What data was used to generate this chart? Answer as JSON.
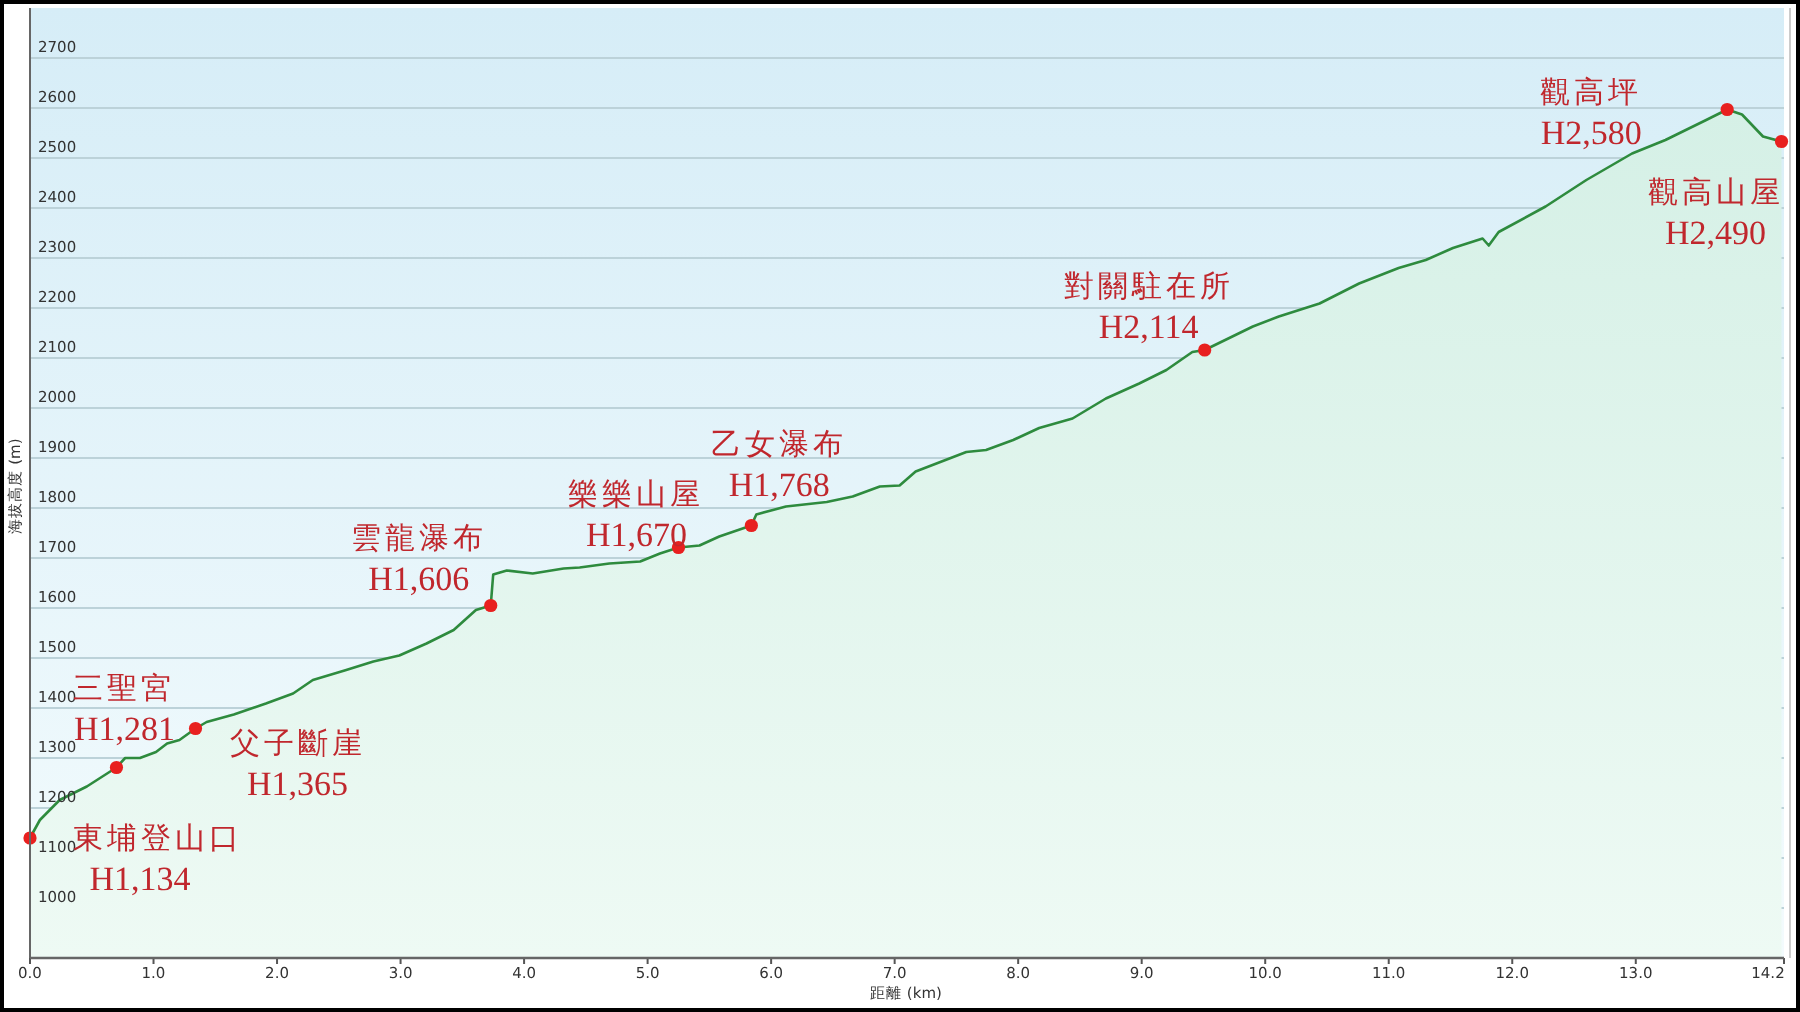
{
  "chart_data": {
    "type": "area",
    "xlabel": "距離 (km)",
    "ylabel": "海拔高度 (m)",
    "xlim": [
      0,
      14.2
    ],
    "ylim": [
      900,
      2800
    ],
    "xticks": [
      {
        "value": 0,
        "label": "0.0"
      },
      {
        "value": 1,
        "label": "1.0"
      },
      {
        "value": 2,
        "label": "2.0"
      },
      {
        "value": 3,
        "label": "3.0"
      },
      {
        "value": 4,
        "label": "4.0"
      },
      {
        "value": 5,
        "label": "5.0"
      },
      {
        "value": 6,
        "label": "6.0"
      },
      {
        "value": 7,
        "label": "7.0"
      },
      {
        "value": 8,
        "label": "8.0"
      },
      {
        "value": 9,
        "label": "9.0"
      },
      {
        "value": 10,
        "label": "10.0"
      },
      {
        "value": 11,
        "label": "11.0"
      },
      {
        "value": 12,
        "label": "12.0"
      },
      {
        "value": 13,
        "label": "13.0"
      },
      14.2
    ],
    "yticks": [
      1000,
      1100,
      1200,
      1300,
      1400,
      1500,
      1600,
      1700,
      1800,
      1900,
      2000,
      2100,
      2200,
      2300,
      2400,
      2500,
      2600,
      2700
    ],
    "grid": "y",
    "series": [
      {
        "color": "#2e8b3e",
        "marker": "none",
        "x": [
          0,
          0.08,
          0.24,
          0.46,
          0.7,
          0.77,
          0.89,
          1.02,
          1.11,
          1.21,
          1.34,
          1.43,
          1.65,
          1.91,
          2.13,
          2.29,
          2.56,
          2.78,
          2.99,
          3.21,
          3.43,
          3.61,
          3.73,
          3.75,
          3.86,
          4.07,
          4.32,
          4.45,
          4.69,
          4.94,
          5.1,
          5.25,
          5.42,
          5.58,
          5.84,
          5.88,
          6.12,
          6.45,
          6.66,
          6.88,
          7.04,
          7.17,
          7.58,
          7.74,
          7.96,
          8.17,
          8.44,
          8.71,
          8.98,
          9.2,
          9.41,
          9.51,
          9.9,
          10.11,
          10.44,
          10.76,
          11.08,
          11.3,
          11.52,
          11.76,
          11.81,
          11.89,
          12.27,
          12.6,
          12.97,
          13.24,
          13.57,
          13.74,
          13.86,
          14.03,
          14.18
        ],
        "values": [
          1140,
          1176,
          1216,
          1243,
          1281,
          1300,
          1300,
          1312,
          1329,
          1336,
          1359,
          1372,
          1387,
          1409,
          1429,
          1456,
          1476,
          1493,
          1505,
          1529,
          1556,
          1596,
          1605,
          1667,
          1675,
          1669,
          1679,
          1681,
          1689,
          1693,
          1709,
          1721,
          1725,
          1743,
          1765,
          1787,
          1803,
          1812,
          1823,
          1843,
          1845,
          1873,
          1912,
          1916,
          1936,
          1960,
          1979,
          2019,
          2049,
          2076,
          2112,
          2116,
          2163,
          2183,
          2209,
          2249,
          2280,
          2296,
          2320,
          2339,
          2325,
          2352,
          2403,
          2456,
          2509,
          2536,
          2576,
          2597,
          2587,
          2543,
          2533
        ]
      },
      {
        "type": "scatter",
        "color": "#e8201f",
        "marker": "circle",
        "x": [
          0,
          0.7,
          1.34,
          3.73,
          5.25,
          5.84,
          9.51,
          13.74,
          14.18
        ],
        "values": [
          1140,
          1281,
          1359,
          1605,
          1721,
          1765,
          2116,
          2597,
          2533
        ]
      }
    ],
    "annotations": [
      "東埔登山口",
      "H1,134",
      "三聖宮",
      "H1,281",
      "父子斷崖",
      "H1,365",
      "雲龍瀑布",
      "H1,606",
      "樂樂山屋",
      "H1,670",
      "乙女瀑布",
      "H1,768",
      "對關駐在所",
      "H2,114",
      "觀高坪",
      "H2,580",
      "觀高山屋",
      "H2,490"
    ]
  }
}
